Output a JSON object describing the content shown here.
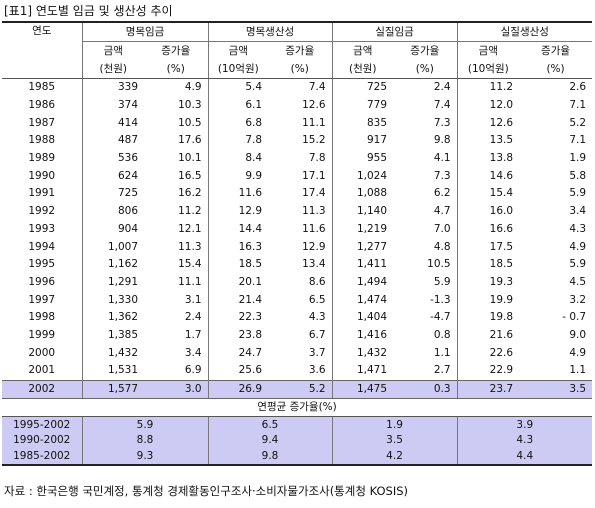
{
  "title": "[표1] 연도별 임금 및 생산성 추이",
  "headers": {
    "year": "연도",
    "groups": [
      "명목임금",
      "명목생산성",
      "실질임금",
      "실질생산성"
    ],
    "sub": [
      "금액",
      "증가율",
      "금액",
      "증가율",
      "금액",
      "증가율",
      "금액",
      "증가율"
    ],
    "units": [
      "(천원)",
      "(%)",
      "(10억원)",
      "(%)",
      "(천원)",
      "(%)",
      "(10억원)",
      "(%)"
    ]
  },
  "rows": [
    [
      "1985",
      "339",
      "4.9",
      "5.4",
      "7.4",
      "725",
      "2.4",
      "11.2",
      "2.6"
    ],
    [
      "1986",
      "374",
      "10.3",
      "6.1",
      "12.6",
      "779",
      "7.4",
      "12.0",
      "7.1"
    ],
    [
      "1987",
      "414",
      "10.5",
      "6.8",
      "11.1",
      "835",
      "7.3",
      "12.6",
      "5.2"
    ],
    [
      "1988",
      "487",
      "17.6",
      "7.8",
      "15.2",
      "917",
      "9.8",
      "13.5",
      "7.1"
    ],
    [
      "1989",
      "536",
      "10.1",
      "8.4",
      "7.8",
      "955",
      "4.1",
      "13.8",
      "1.9"
    ],
    [
      "1990",
      "624",
      "16.5",
      "9.9",
      "17.1",
      "1,024",
      "7.3",
      "14.6",
      "5.8"
    ],
    [
      "1991",
      "725",
      "16.2",
      "11.6",
      "17.4",
      "1,088",
      "6.2",
      "15.4",
      "5.9"
    ],
    [
      "1992",
      "806",
      "11.2",
      "12.9",
      "11.3",
      "1,140",
      "4.7",
      "16.0",
      "3.4"
    ],
    [
      "1993",
      "904",
      "12.1",
      "14.4",
      "11.6",
      "1,219",
      "7.0",
      "16.6",
      "4.3"
    ],
    [
      "1994",
      "1,007",
      "11.3",
      "16.3",
      "12.9",
      "1,277",
      "4.8",
      "17.5",
      "4.9"
    ],
    [
      "1995",
      "1,162",
      "15.4",
      "18.5",
      "13.4",
      "1,411",
      "10.5",
      "18.5",
      "5.9"
    ],
    [
      "1996",
      "1,291",
      "11.1",
      "20.1",
      "8.6",
      "1,494",
      "5.9",
      "19.3",
      "4.5"
    ],
    [
      "1997",
      "1,330",
      "3.1",
      "21.4",
      "6.5",
      "1,474",
      "-1.3",
      "19.9",
      "3.2"
    ],
    [
      "1998",
      "1,362",
      "2.4",
      "22.3",
      "4.3",
      "1,404",
      "-4.7",
      "19.8",
      "- 0.7"
    ],
    [
      "1999",
      "1,385",
      "1.7",
      "23.8",
      "6.7",
      "1,416",
      "0.8",
      "21.6",
      "9.0"
    ],
    [
      "2000",
      "1,432",
      "3.4",
      "24.7",
      "3.7",
      "1,432",
      "1.1",
      "22.6",
      "4.9"
    ],
    [
      "2001",
      "1,531",
      "6.9",
      "25.6",
      "3.6",
      "1,471",
      "2.7",
      "22.9",
      "1.1"
    ]
  ],
  "highlight_row": [
    "2002",
    "1,577",
    "3.0",
    "26.9",
    "5.2",
    "1,475",
    "0.3",
    "23.7",
    "3.5"
  ],
  "avg_title": "연평균 증가율(%)",
  "avg_rows": [
    [
      "1995-2002",
      "5.9",
      "6.5",
      "1.9",
      "3.9"
    ],
    [
      "1990-2002",
      "8.8",
      "9.4",
      "3.5",
      "4.3"
    ],
    [
      "1985-2002",
      "9.3",
      "9.8",
      "4.2",
      "4.4"
    ]
  ],
  "source": "자료 : 한국은행 국민계정, 통계청 경제활동인구조사·소비자물가조사(통계청 KOSIS)",
  "colors": {
    "highlight": "#cdcbf3",
    "rule": "#222222",
    "grid": "#777777"
  }
}
